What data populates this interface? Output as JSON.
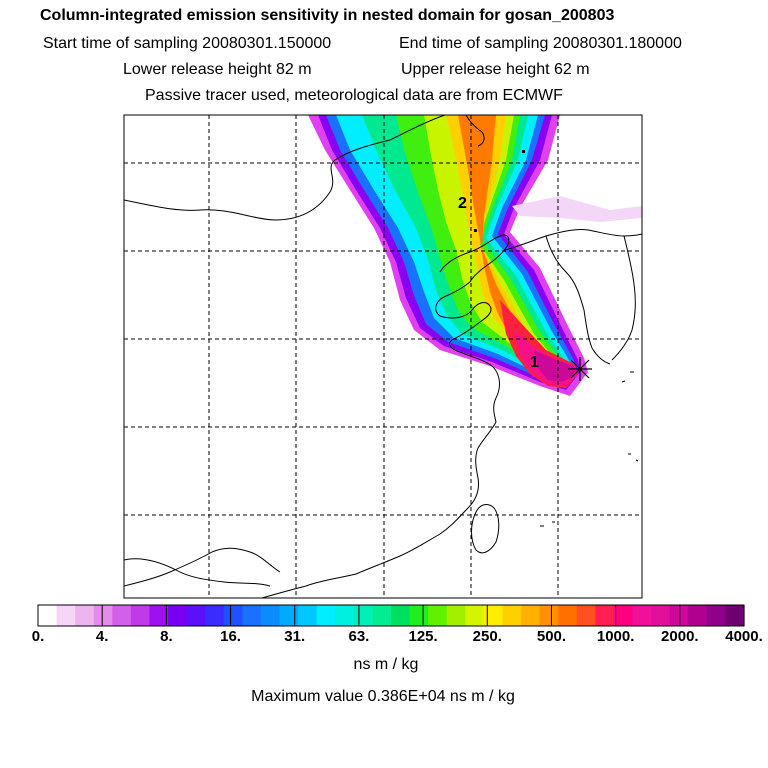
{
  "header": {
    "title": "Column-integrated emission sensitivity in nested domain for gosan_200803",
    "start_time": "Start time of sampling 20080301.150000",
    "end_time": "End time of sampling 20080301.180000",
    "lower_height": "Lower release height   82 m",
    "upper_height": "Upper release height   62 m",
    "tracer_note": "Passive tracer used, meteorological data are from ECMWF"
  },
  "map": {
    "labels": [
      "1",
      "2"
    ],
    "receptor_marker": "star-marker",
    "grid": true
  },
  "colorbar": {
    "tick_labels": [
      "0.",
      "4.",
      "8.",
      "16.",
      "31.",
      "63.",
      "125.",
      "250.",
      "500.",
      "1000.",
      "2000.",
      "4000."
    ],
    "colors": [
      "#ffffff",
      "#f6d6f8",
      "#eeb4f2",
      "#e48ce8",
      "#d260e8",
      "#c13ae8",
      "#9f10f0",
      "#7a00f4",
      "#5a10f8",
      "#3a2cff",
      "#2050ff",
      "#1c70ff",
      "#0a8cff",
      "#00aaff",
      "#00c8ff",
      "#00eeff",
      "#00f0e0",
      "#00f0b8",
      "#00ee90",
      "#00e060",
      "#20ee20",
      "#60f000",
      "#a0f000",
      "#d4f400",
      "#ffee00",
      "#ffd000",
      "#ffb000",
      "#ff9000",
      "#ff7000",
      "#ff5020",
      "#ff2050",
      "#ff0080",
      "#f0109a",
      "#e0109a",
      "#cc0899",
      "#b00090",
      "#900088",
      "#700070"
    ],
    "units": "ns m / kg",
    "max_value": "Maximum value  0.386E+04 ns m / kg"
  }
}
